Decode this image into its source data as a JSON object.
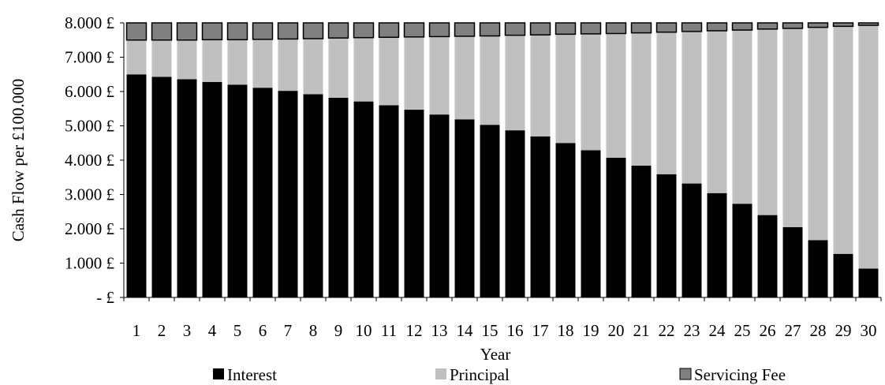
{
  "chart_data": {
    "type": "bar",
    "stacked": true,
    "xlabel": "Year",
    "ylabel": "Cash Flow per £100.000",
    "ylim": [
      0,
      8000
    ],
    "yticks": [
      0,
      1000,
      2000,
      3000,
      4000,
      5000,
      6000,
      7000,
      8000
    ],
    "ytick_labels": [
      "- £",
      "1.000 £",
      "2.000 £",
      "3.000 £",
      "4.000 £",
      "5.000 £",
      "6.000 £",
      "7.000 £",
      "8.000 £"
    ],
    "grid": false,
    "legend_position": "bottom",
    "categories": [
      "1",
      "2",
      "3",
      "4",
      "5",
      "6",
      "7",
      "8",
      "9",
      "10",
      "11",
      "12",
      "13",
      "14",
      "15",
      "16",
      "17",
      "18",
      "19",
      "20",
      "21",
      "22",
      "23",
      "24",
      "25",
      "26",
      "27",
      "28",
      "29",
      "30"
    ],
    "series": [
      {
        "name": "Interest",
        "color": "#000000",
        "values": [
          6500,
          6430,
          6360,
          6280,
          6200,
          6110,
          6020,
          5920,
          5820,
          5710,
          5600,
          5470,
          5330,
          5190,
          5030,
          4870,
          4690,
          4500,
          4290,
          4070,
          3840,
          3590,
          3320,
          3040,
          2730,
          2400,
          2050,
          1670,
          1270,
          840
        ]
      },
      {
        "name": "Principal",
        "color": "#c0c0c0",
        "values": [
          1000,
          1070,
          1140,
          1230,
          1310,
          1410,
          1510,
          1620,
          1740,
          1860,
          1980,
          2120,
          2270,
          2420,
          2590,
          2770,
          2960,
          3170,
          3390,
          3620,
          3870,
          4140,
          4430,
          4730,
          5060,
          5420,
          5790,
          6200,
          6630,
          7090
        ]
      },
      {
        "name": "Servicing Fee",
        "color": "#808080",
        "values": [
          500,
          500,
          500,
          490,
          490,
          480,
          470,
          460,
          440,
          430,
          420,
          410,
          400,
          390,
          380,
          360,
          350,
          330,
          320,
          310,
          290,
          270,
          250,
          230,
          210,
          180,
          160,
          130,
          100,
          70
        ]
      }
    ]
  }
}
